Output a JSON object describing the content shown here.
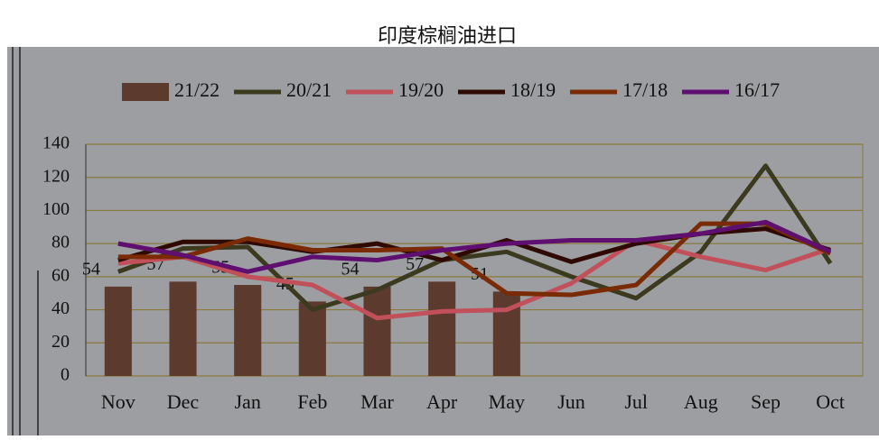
{
  "chart_data": {
    "type": "bar-line",
    "title": "印度棕榈油进口",
    "categories": [
      "Nov",
      "Dec",
      "Jan",
      "Feb",
      "Mar",
      "Apr",
      "May",
      "Jun",
      "Jul",
      "Aug",
      "Sep",
      "Oct"
    ],
    "ylim": [
      0,
      140
    ],
    "yticks": [
      0,
      20,
      40,
      60,
      80,
      100,
      120,
      140
    ],
    "grid": true,
    "legend": "top",
    "series": [
      {
        "name": "21/22",
        "kind": "bar",
        "color": "#5c3b2e",
        "values": [
          54,
          57,
          55,
          45,
          54,
          57,
          51,
          null,
          null,
          null,
          null,
          null
        ]
      },
      {
        "name": "20/21",
        "kind": "line",
        "color": "#3b3a1f",
        "values": [
          63,
          77,
          78,
          40,
          52,
          70,
          75,
          60,
          47,
          75,
          127,
          68
        ]
      },
      {
        "name": "19/20",
        "kind": "line",
        "color": "#c2505a",
        "values": [
          68,
          72,
          60,
          55,
          35,
          39,
          40,
          56,
          82,
          72,
          64,
          77
        ]
      },
      {
        "name": "18/19",
        "kind": "line",
        "color": "#2e0a02",
        "values": [
          70,
          81,
          81,
          75,
          80,
          70,
          82,
          69,
          80,
          86,
          89,
          76
        ]
      },
      {
        "name": "17/18",
        "kind": "line",
        "color": "#7a2a05",
        "values": [
          72,
          72,
          83,
          76,
          76,
          77,
          50,
          49,
          55,
          92,
          92,
          74
        ]
      },
      {
        "name": "16/17",
        "kind": "line",
        "color": "#5e0f70",
        "values": [
          80,
          73,
          63,
          72,
          70,
          76,
          80,
          82,
          82,
          86,
          93,
          75
        ]
      }
    ]
  }
}
